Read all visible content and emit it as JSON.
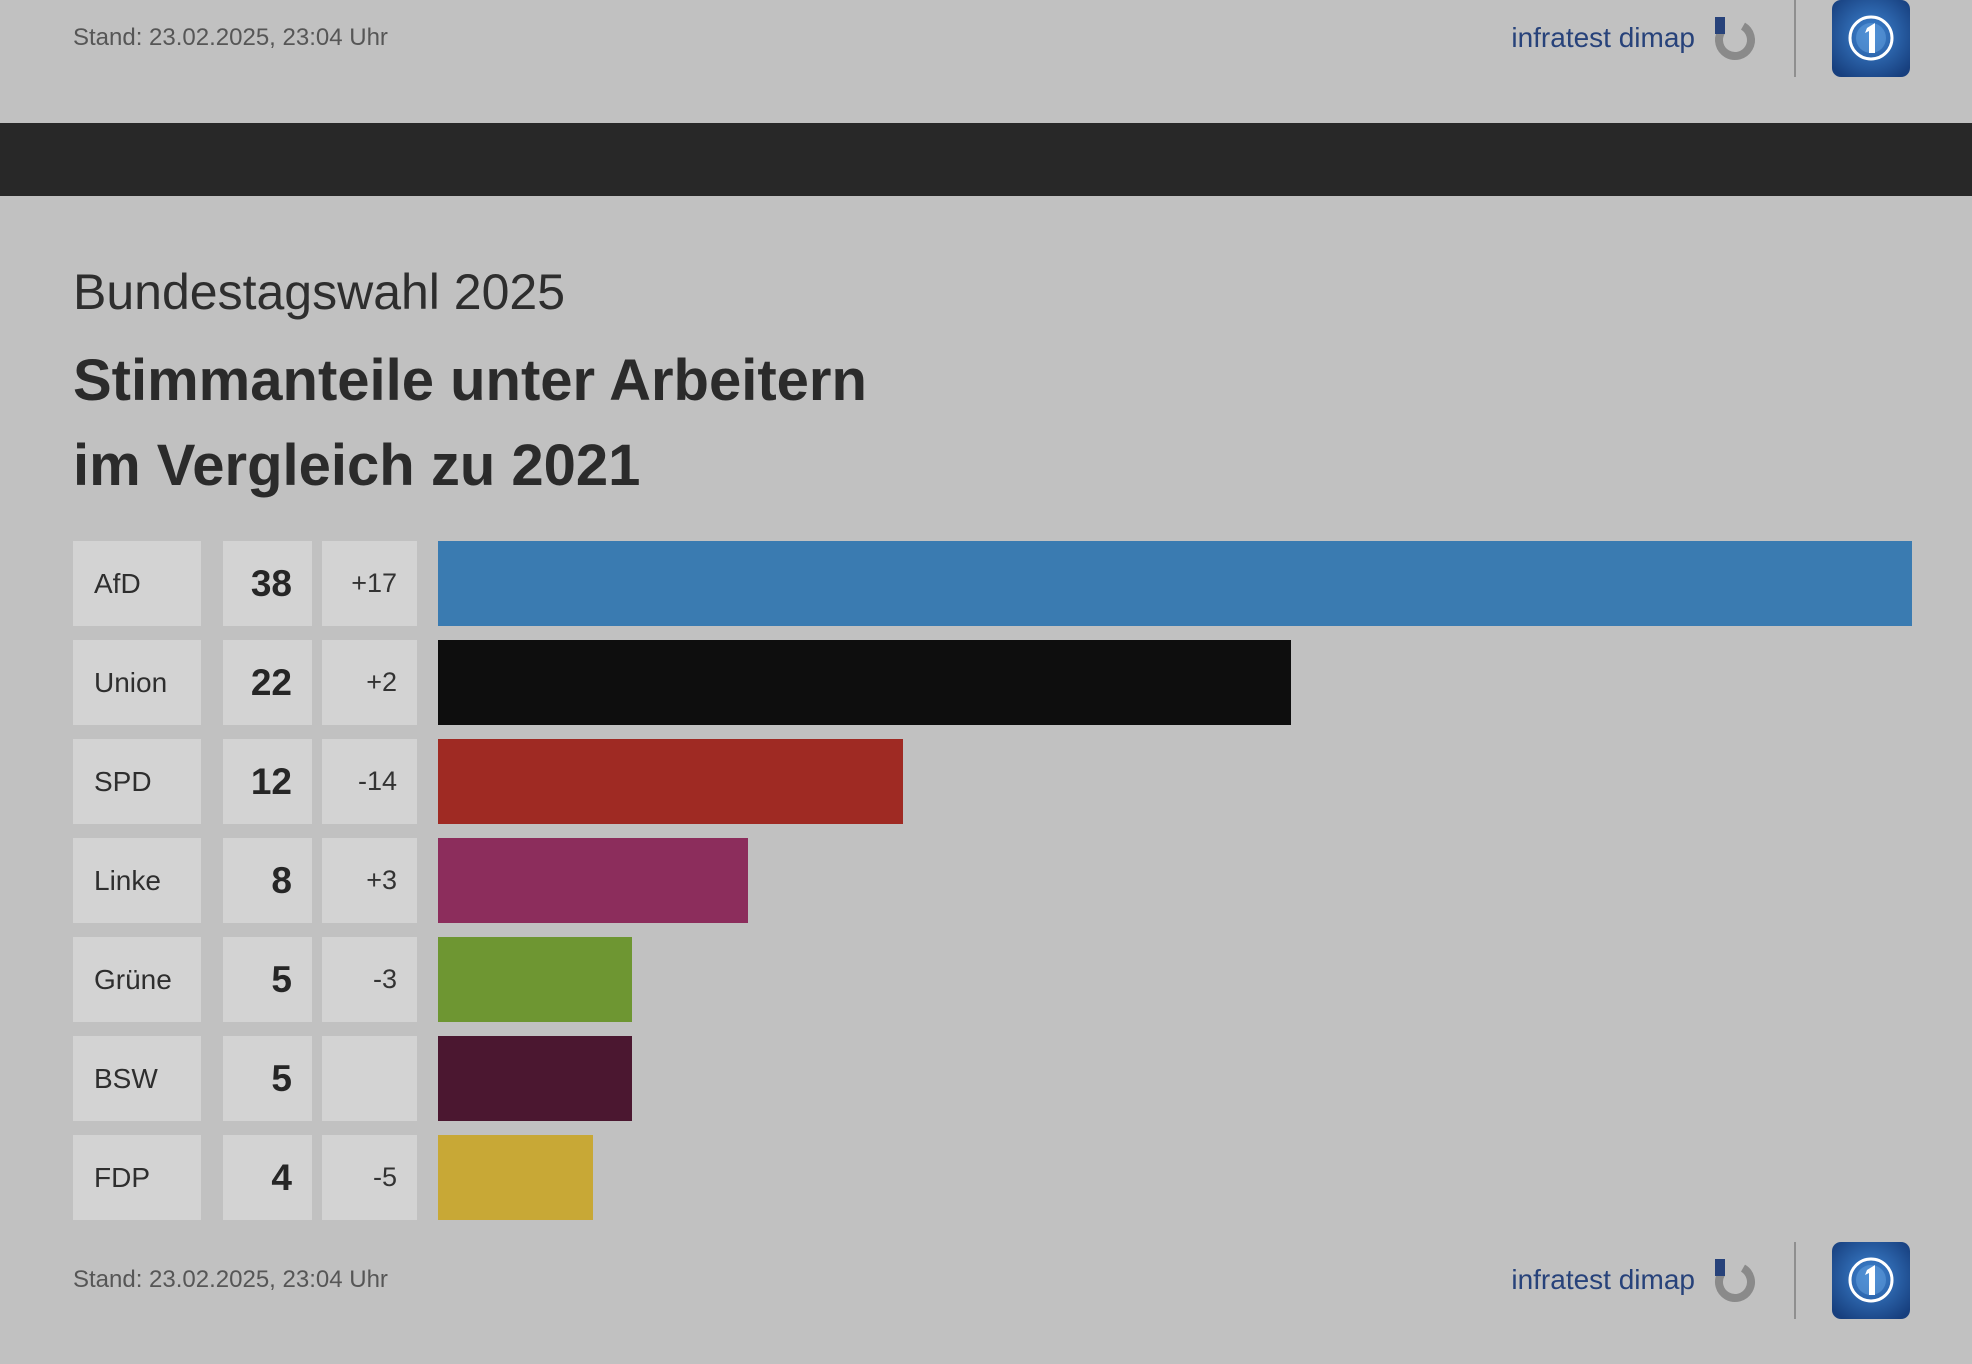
{
  "header": {
    "stand": "Stand: 23.02.2025, 23:04 Uhr",
    "brand": "infratest dimap",
    "brand_icon": "infratest-dimap-logo-icon",
    "broadcaster_icon": "ard-logo-icon"
  },
  "footer": {
    "stand": "Stand: 23.02.2025, 23:04 Uhr",
    "brand": "infratest dimap",
    "brand_icon": "infratest-dimap-logo-icon",
    "broadcaster_icon": "ard-logo-icon"
  },
  "colors": {
    "background": "#c1c1c1",
    "band": "#282828",
    "cell": "#d3d3d3",
    "brand": "#27427a"
  },
  "chart_data": {
    "type": "bar",
    "orientation": "horizontal",
    "subtitle": "Bundestagswahl 2025",
    "title_lines": [
      "Stimmanteile unter Arbeitern",
      "im Vergleich zu 2021"
    ],
    "categories": [
      "AfD",
      "Union",
      "SPD",
      "Linke",
      "Grüne",
      "BSW",
      "FDP"
    ],
    "values": [
      38,
      22,
      12,
      8,
      5,
      5,
      4
    ],
    "changes": [
      "+17",
      "+2",
      "-14",
      "+3",
      "-3",
      "",
      "-5"
    ],
    "colors": [
      "#3a7bb1",
      "#0e0e0e",
      "#9f2a23",
      "#8c2d5c",
      "#6e9632",
      "#4b1730",
      "#c8a836"
    ],
    "grid": false,
    "legend": "none"
  }
}
